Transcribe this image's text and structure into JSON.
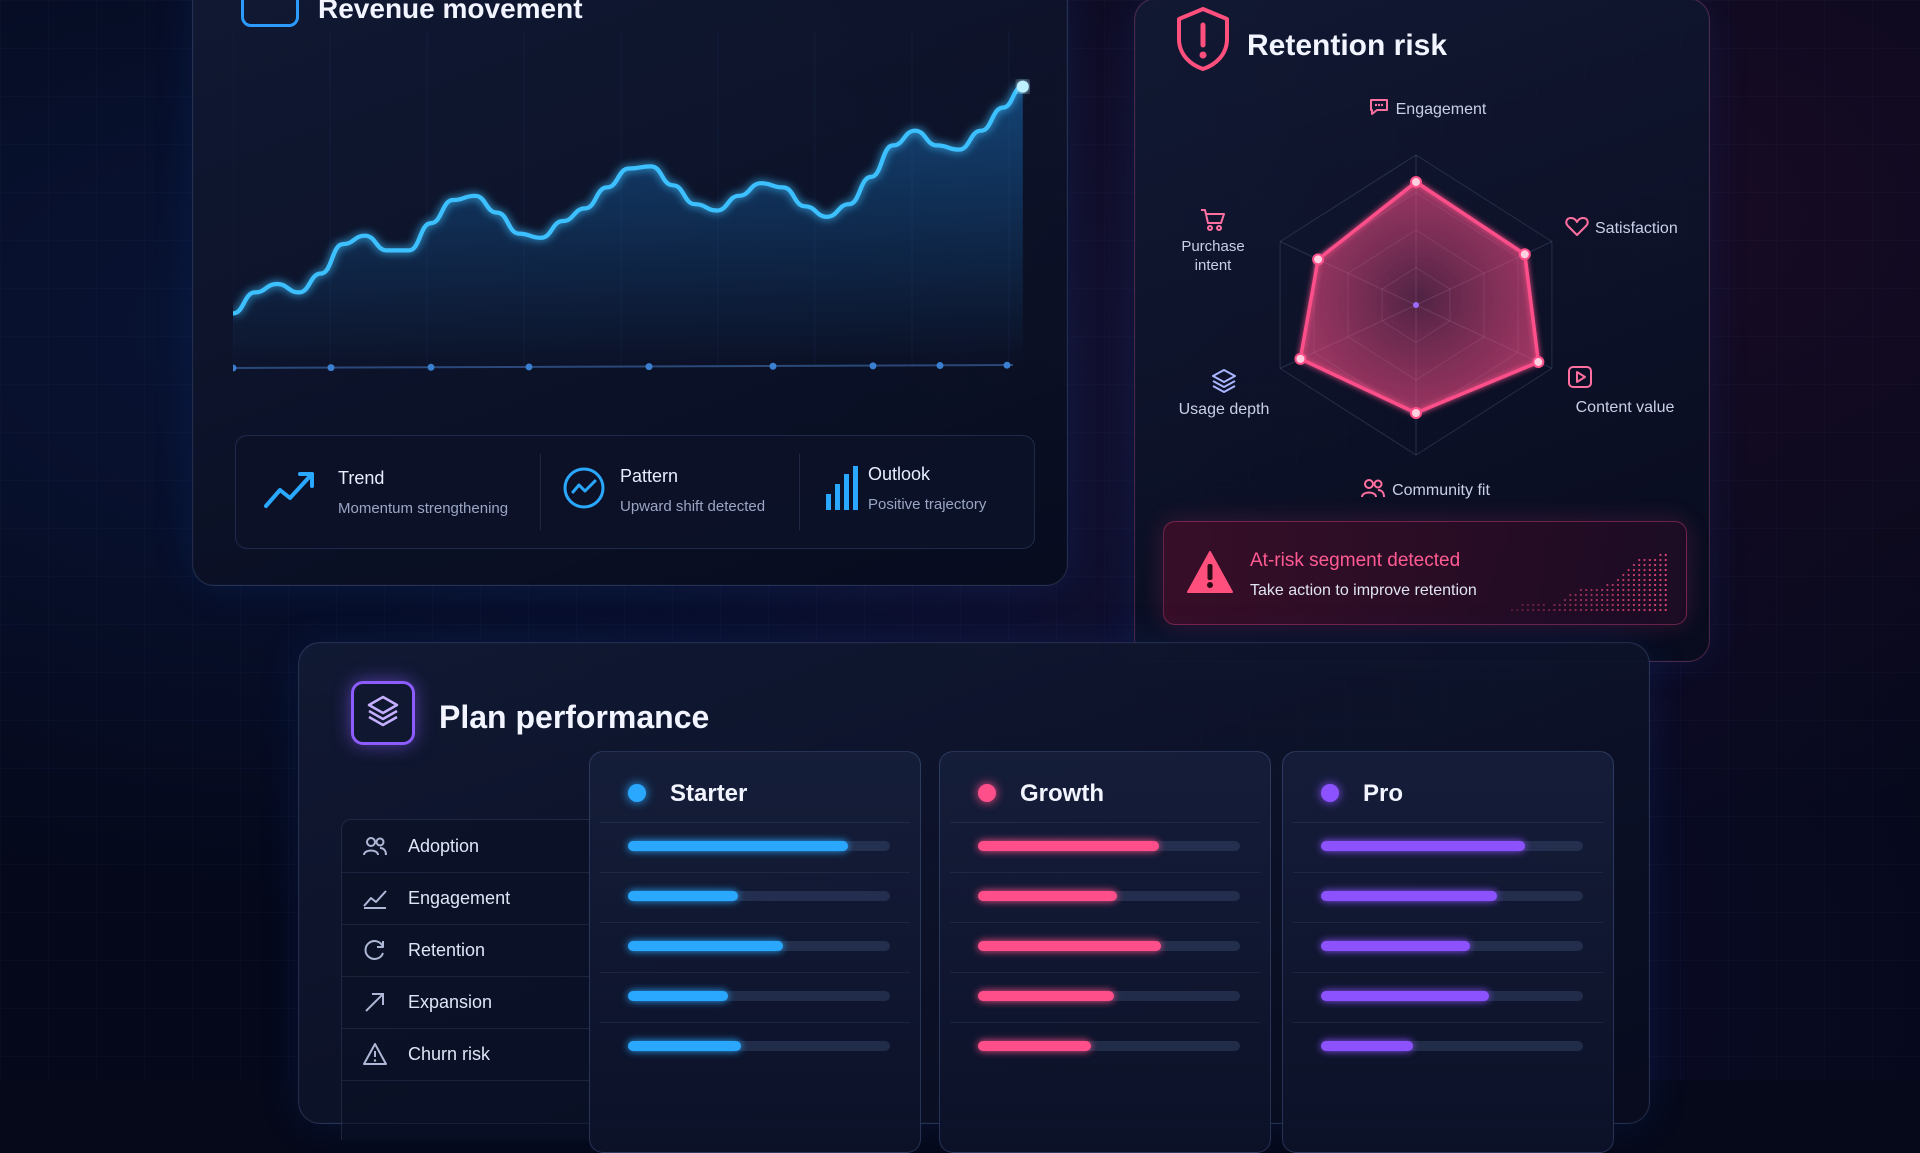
{
  "colors": {
    "blue": "#2aa8ff",
    "pink": "#ff4f8a",
    "purple": "#8c52ff",
    "alert": "#ff4f7d"
  },
  "revenue": {
    "title": "Revenue movement",
    "stats": [
      {
        "icon": "trend-up-icon",
        "label": "Trend",
        "sub": "Momentum strengthening"
      },
      {
        "icon": "pattern-icon",
        "label": "Pattern",
        "sub": "Upward shift detected"
      },
      {
        "icon": "bar-chart-icon",
        "label": "Outlook",
        "sub": "Positive trajectory"
      }
    ]
  },
  "retention": {
    "title": "Retention risk",
    "axes": [
      {
        "label": "Engagement",
        "icon": "chat-icon",
        "value": 0.82
      },
      {
        "label": "Satisfaction",
        "icon": "heart-icon",
        "value": 0.8
      },
      {
        "label": "Content value",
        "icon": "play-icon",
        "value": 0.9
      },
      {
        "label": "Community fit",
        "icon": "users-icon",
        "value": 0.72
      },
      {
        "label": "Usage depth",
        "icon": "layers-icon",
        "value": 0.85
      },
      {
        "label": "Purchase intent",
        "icon": "cart-icon",
        "value": 0.72
      }
    ],
    "alert": {
      "title": "At-risk segment detected",
      "sub": "Take action to improve retention"
    }
  },
  "plan": {
    "title": "Plan performance",
    "metrics": [
      {
        "label": "Adoption",
        "icon": "users-icon"
      },
      {
        "label": "Engagement",
        "icon": "trend-line-icon"
      },
      {
        "label": "Retention",
        "icon": "refresh-icon"
      },
      {
        "label": "Expansion",
        "icon": "arrow-up-right-icon"
      },
      {
        "label": "Churn risk",
        "icon": "warning-icon"
      }
    ],
    "plans": [
      {
        "name": "Starter",
        "color": "#2aa8ff",
        "values": [
          0.84,
          0.42,
          0.59,
          0.38,
          0.43
        ]
      },
      {
        "name": "Growth",
        "color": "#ff4f8a",
        "values": [
          0.69,
          0.53,
          0.7,
          0.52,
          0.43
        ]
      },
      {
        "name": "Pro",
        "color": "#8c52ff",
        "values": [
          0.78,
          0.67,
          0.57,
          0.64,
          0.35
        ]
      }
    ]
  }
}
